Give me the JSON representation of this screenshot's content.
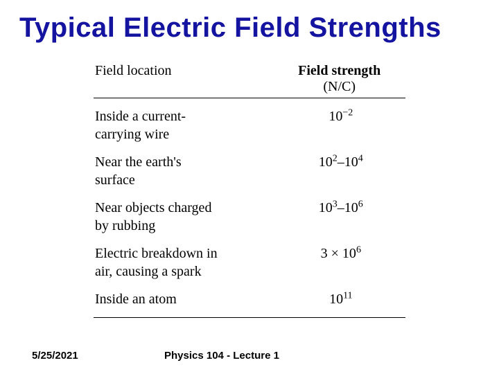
{
  "title": "Typical Electric Field Strengths",
  "table": {
    "header": {
      "location": "Field location",
      "strength_bold": "Field strength",
      "strength_unit": "(N/C)"
    },
    "rows": [
      {
        "location": "Inside a current-\ncarrying wire",
        "strength_html": "10<sup>−2</sup>"
      },
      {
        "location": "Near the earth's\nsurface",
        "strength_html": "10<sup>2</sup>–10<sup>4</sup>"
      },
      {
        "location": "Near objects charged\nby rubbing",
        "strength_html": "10<sup>3</sup>–10<sup>6</sup>"
      },
      {
        "location": "Electric breakdown in\nair, causing a spark",
        "strength_html": "3 × 10<sup>6</sup>"
      },
      {
        "location": "Inside an atom",
        "strength_html": "10<sup>11</sup>"
      }
    ]
  },
  "footer": {
    "date": "5/25/2021",
    "lecture": "Physics 104  -  Lecture 1"
  },
  "colors": {
    "title": "#1414a0",
    "text": "#000000",
    "background": "#ffffff",
    "border": "#000000"
  }
}
